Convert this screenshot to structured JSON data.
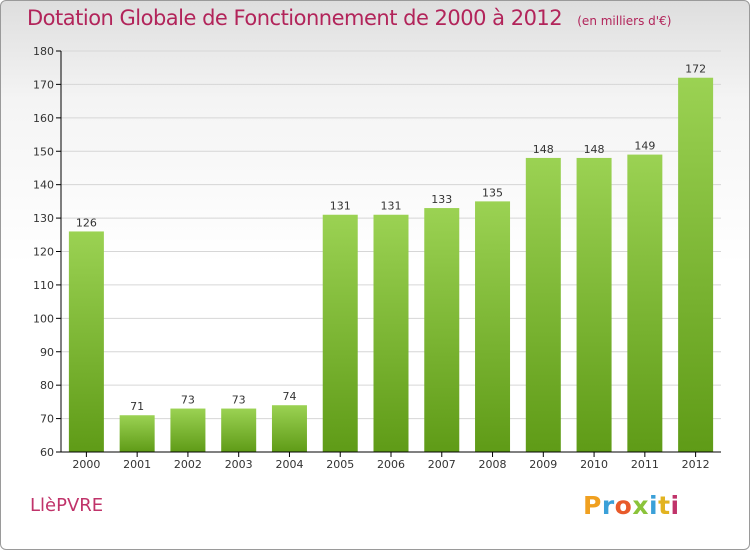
{
  "header": {
    "title": "Dotation Globale de Fonctionnement de 2000 à 2012",
    "subtitle": "(en milliers d'€)"
  },
  "footer": {
    "commune": "LlèPVRE",
    "brand": "Proxiti"
  },
  "colors": {
    "title": "#b2245a",
    "bar_top": "#9bd253",
    "bar_bottom": "#5f9b17",
    "axis": "#000000",
    "grid": "#d6d6d6"
  },
  "chart_data": {
    "type": "bar",
    "title": "Dotation Globale de Fonctionnement de 2000 à 2012",
    "subtitle": "(en milliers d'€)",
    "categories": [
      "2000",
      "2001",
      "2002",
      "2003",
      "2004",
      "2005",
      "2006",
      "2007",
      "2008",
      "2009",
      "2010",
      "2011",
      "2012"
    ],
    "values": [
      126,
      71,
      73,
      73,
      74,
      131,
      131,
      133,
      135,
      148,
      148,
      149,
      172
    ],
    "ylim": [
      60,
      180
    ],
    "yticks": [
      60,
      70,
      80,
      90,
      100,
      110,
      120,
      130,
      140,
      150,
      160,
      170,
      180
    ],
    "grid": true,
    "legend": "none"
  }
}
